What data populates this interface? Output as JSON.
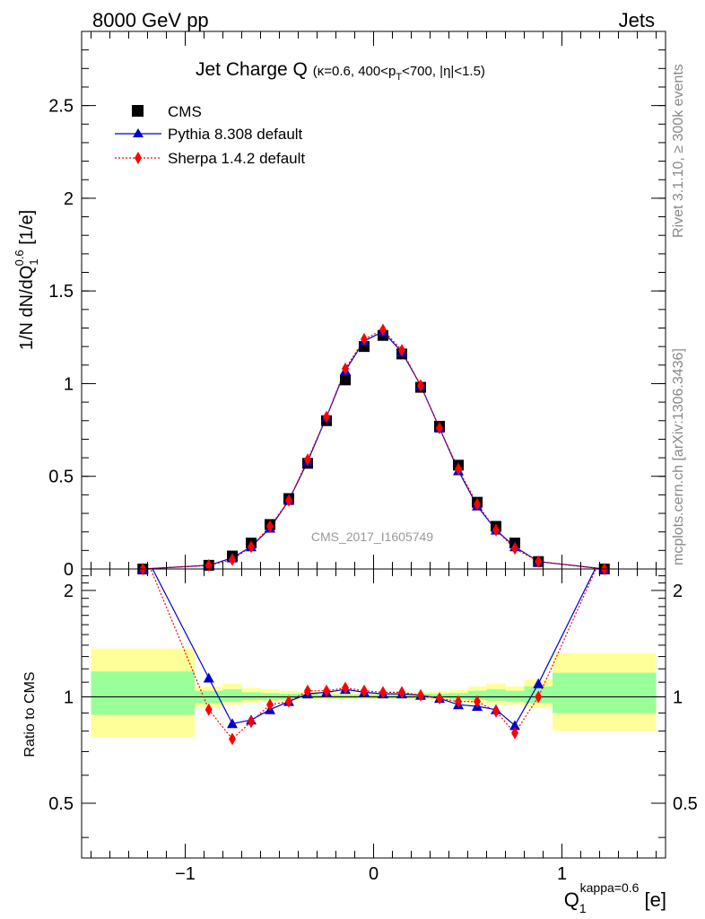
{
  "header": {
    "left": "8000 GeV pp",
    "right": "Jets"
  },
  "side_labels": {
    "rivet": "Rivet 3.1.10, ≥ 300k events",
    "mcplots": "mcplots.cern.ch [arXiv:1306.3436]"
  },
  "chart_data": [
    {
      "type": "scatter",
      "panel": "main",
      "title_main": "Jet Charge Q",
      "title_sub": "(κ=0.6, 400<p_T<700, |η|<1.5)",
      "title_sub_parts": {
        "a": "(κ=0.6, 400<p",
        "sub": "T",
        "b": "<700, |η|<1.5)"
      },
      "ylabel": "1/N dN/dQ_1^0.6 [1/e]",
      "ylabel_parts": {
        "a": "1/N dN/dQ",
        "sub": "1",
        "sup": "0.6",
        "b": " [1/e]"
      },
      "watermark": "CMS_2017_I1605749",
      "xlim": [
        -1.55,
        1.55
      ],
      "ylim": [
        0,
        2.9
      ],
      "yticks": [
        0,
        0.5,
        1,
        1.5,
        2,
        2.5
      ],
      "ytick_labels": [
        "0",
        "0.5",
        "1",
        "1.5",
        "2",
        "2.5"
      ],
      "x": [
        -1.225,
        -0.875,
        -0.75,
        -0.65,
        -0.55,
        -0.45,
        -0.35,
        -0.25,
        -0.15,
        -0.05,
        0.05,
        0.15,
        0.25,
        0.35,
        0.45,
        0.55,
        0.65,
        0.75,
        0.875,
        1.225
      ],
      "legend_position": "top-left",
      "series": [
        {
          "name": "CMS",
          "marker": "square",
          "color": "#000000",
          "line": "none",
          "values": [
            0.0,
            0.02,
            0.07,
            0.14,
            0.24,
            0.38,
            0.57,
            0.8,
            1.02,
            1.2,
            1.26,
            1.16,
            0.98,
            0.77,
            0.56,
            0.36,
            0.23,
            0.14,
            0.04,
            0.0
          ]
        },
        {
          "name": "Pythia 8.308 default",
          "marker": "triangle",
          "color": "#0000cc",
          "line": "solid",
          "values": [
            0.0,
            0.02,
            0.06,
            0.12,
            0.22,
            0.37,
            0.58,
            0.82,
            1.07,
            1.23,
            1.28,
            1.17,
            0.99,
            0.76,
            0.53,
            0.34,
            0.21,
            0.12,
            0.04,
            0.0
          ]
        },
        {
          "name": "Sherpa 1.4.2 default",
          "marker": "diamond",
          "color": "#ff0000",
          "line": "dotted",
          "values": [
            0.0,
            0.02,
            0.05,
            0.12,
            0.23,
            0.37,
            0.59,
            0.82,
            1.08,
            1.24,
            1.29,
            1.18,
            0.99,
            0.76,
            0.54,
            0.35,
            0.21,
            0.11,
            0.04,
            0.0
          ]
        }
      ]
    },
    {
      "type": "line",
      "panel": "ratio",
      "ylabel": "Ratio to CMS",
      "xlabel": "Q_1^kappa=0.6 [e]",
      "xlabel_parts": {
        "a": "Q",
        "sub": "1",
        "sup": "kappa=0.6",
        "b": " [e]"
      },
      "xlim": [
        -1.55,
        1.55
      ],
      "ylim": [
        0.35,
        2.3
      ],
      "yticks": [
        0.5,
        1,
        2
      ],
      "ytick_labels": [
        "0.5",
        "1",
        "2"
      ],
      "xticks": [
        -1,
        0,
        1
      ],
      "xtick_labels": [
        "−1",
        "0",
        "1"
      ],
      "x": [
        -1.225,
        -0.875,
        -0.75,
        -0.65,
        -0.55,
        -0.45,
        -0.35,
        -0.25,
        -0.15,
        -0.05,
        0.05,
        0.15,
        0.25,
        0.35,
        0.45,
        0.55,
        0.65,
        0.75,
        0.875,
        1.225
      ],
      "bands": {
        "edges": [
          -1.5,
          -0.95,
          -0.8,
          -0.7,
          -0.6,
          -0.5,
          -0.4,
          -0.3,
          -0.2,
          -0.1,
          0.0,
          0.1,
          0.2,
          0.3,
          0.4,
          0.5,
          0.6,
          0.7,
          0.8,
          0.95,
          1.5
        ],
        "yellow_lo": [
          0.77,
          0.93,
          0.95,
          0.96,
          0.97,
          0.975,
          0.98,
          0.985,
          0.985,
          0.985,
          0.985,
          0.985,
          0.985,
          0.98,
          0.975,
          0.96,
          0.95,
          0.95,
          0.93,
          0.8
        ],
        "yellow_hi": [
          1.37,
          1.07,
          1.09,
          1.06,
          1.05,
          1.04,
          1.035,
          1.03,
          1.03,
          1.025,
          1.025,
          1.03,
          1.03,
          1.035,
          1.045,
          1.07,
          1.09,
          1.07,
          1.12,
          1.33
        ],
        "green_lo": [
          0.89,
          0.96,
          0.97,
          0.98,
          0.98,
          0.985,
          0.99,
          0.99,
          0.99,
          0.99,
          0.99,
          0.99,
          0.99,
          0.99,
          0.985,
          0.98,
          0.975,
          0.97,
          0.96,
          0.9
        ],
        "green_hi": [
          1.18,
          1.04,
          1.05,
          1.03,
          1.025,
          1.02,
          1.02,
          1.015,
          1.015,
          1.015,
          1.015,
          1.015,
          1.02,
          1.02,
          1.025,
          1.04,
          1.05,
          1.04,
          1.07,
          1.17
        ]
      },
      "series": [
        {
          "name": "Pythia 8.308 default",
          "marker": "triangle",
          "color": "#0000cc",
          "line": "solid",
          "values": [
            2.6,
            1.13,
            0.84,
            0.86,
            0.92,
            0.97,
            1.02,
            1.03,
            1.05,
            1.03,
            1.02,
            1.02,
            1.01,
            0.99,
            0.95,
            0.94,
            0.92,
            0.83,
            1.09,
            2.6
          ]
        },
        {
          "name": "Sherpa 1.4.2 default",
          "marker": "diamond",
          "color": "#ff0000",
          "line": "dotted",
          "values": [
            2.6,
            0.92,
            0.76,
            0.85,
            0.95,
            0.97,
            1.04,
            1.04,
            1.06,
            1.04,
            1.03,
            1.03,
            1.01,
            0.99,
            0.97,
            0.97,
            0.91,
            0.79,
            1.0,
            2.6
          ]
        }
      ]
    }
  ]
}
